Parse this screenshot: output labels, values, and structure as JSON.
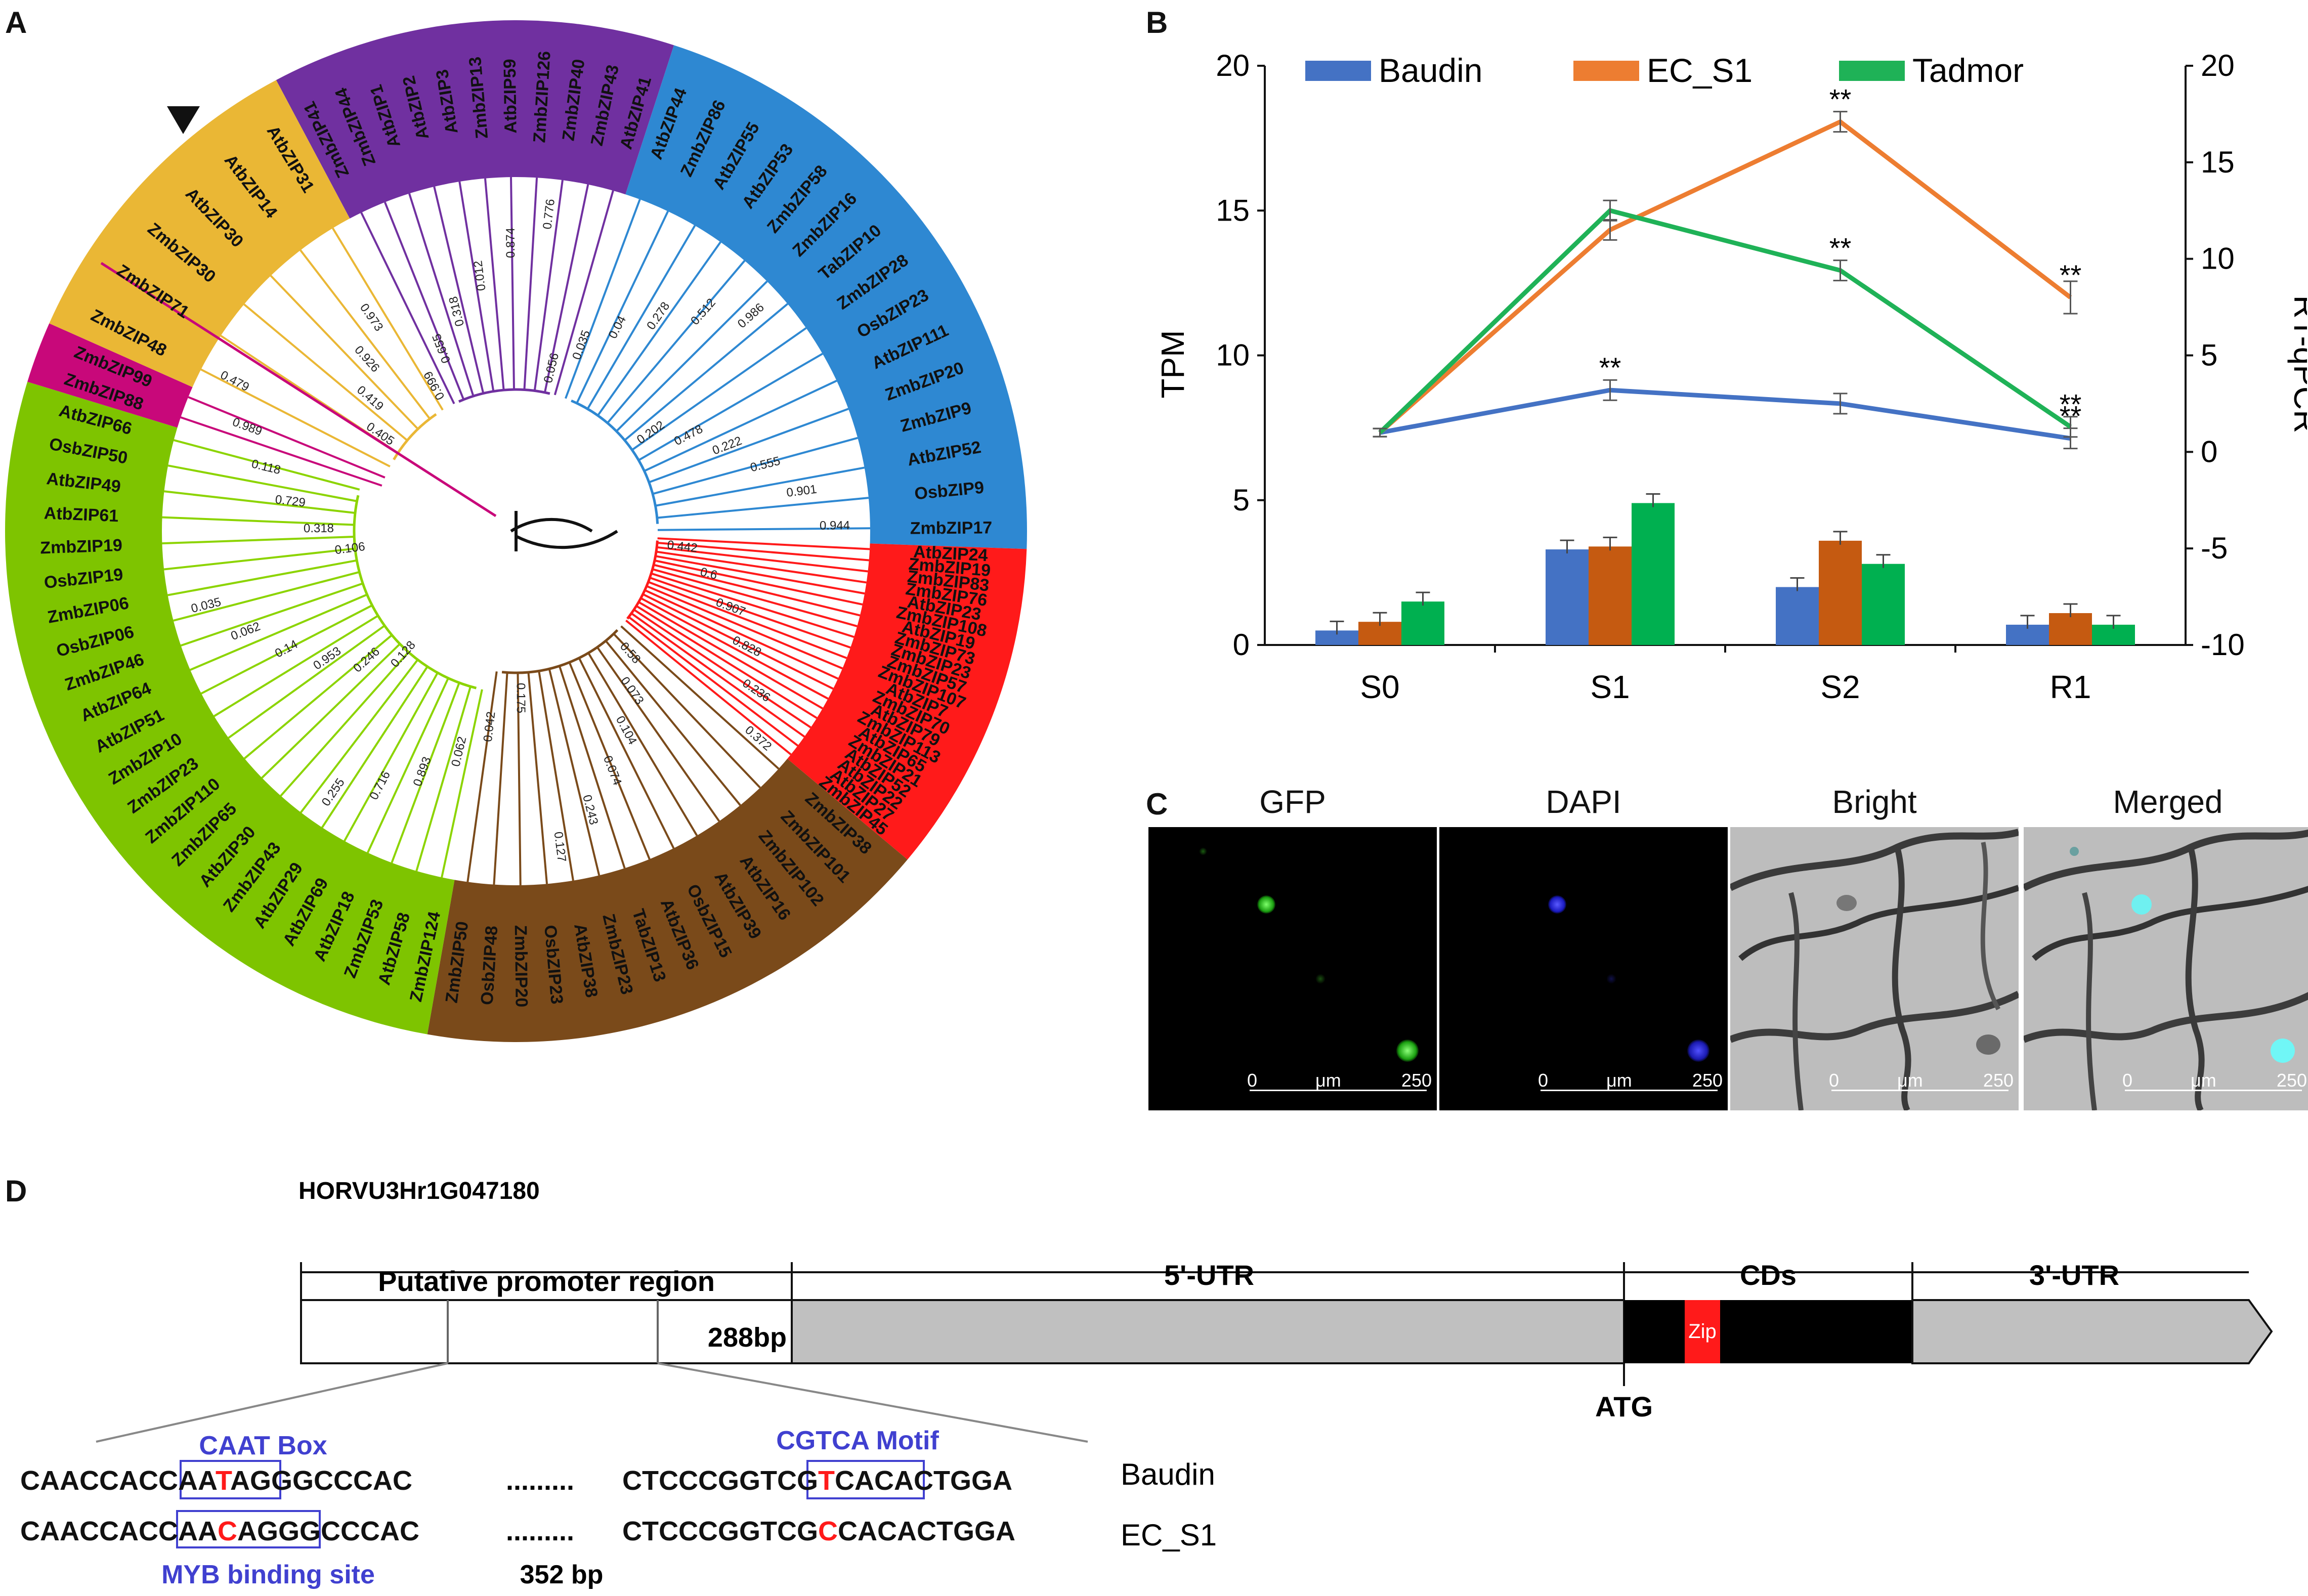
{
  "panels": {
    "a": "A",
    "b": "B",
    "c": "C",
    "d": "D"
  },
  "tree": {
    "clades": [
      {
        "name": "purple",
        "color": "#7030a0"
      },
      {
        "name": "blue",
        "color": "#2e88d2"
      },
      {
        "name": "red",
        "color": "#ff1a1a"
      },
      {
        "name": "brown",
        "color": "#7a4a1a"
      },
      {
        "name": "green",
        "color": "#7ec400"
      },
      {
        "name": "magenta",
        "color": "#c8087a"
      },
      {
        "name": "yellow",
        "color": "#eab735"
      }
    ],
    "leaves_purple": [
      "ZmbZIP41",
      "ZmbZIP44",
      "AtbZIP1",
      "AtbZIP2",
      "AtbZIP3",
      "ZmbZIP13",
      "AtbZIP59",
      "ZmbZIP126",
      "ZmbZIP40",
      "ZmbZIP43",
      "AtbZIP41"
    ],
    "leaves_blue": [
      "AtbZIP44",
      "ZmbZIP86",
      "AtbZIP55",
      "AtbZIP53",
      "ZmbZIP58",
      "ZmbZIP16",
      "TabZIP10",
      "ZmbZIP28",
      "OsbZIP23",
      "AtbZIP111",
      "ZmbZIP20",
      "ZmbZIP9",
      "AtbZIP52",
      "OsbZIP9",
      "ZmbZIP17"
    ],
    "leaves_red": [
      "AtbZIP24",
      "ZmbZIP19",
      "ZmbZIP83",
      "ZmbZIP76",
      "AtbZIP23",
      "ZmbZIP108",
      "AtbZIP19",
      "ZmbZIP73",
      "ZmbZIP23",
      "ZmbZIP57",
      "ZmbZIP107",
      "AtbZIP7",
      "ZmbZIP70",
      "AtbZIP79",
      "ZmbZIP113",
      "AtbZIP65",
      "ZmbZIP21",
      "AtbZIP52",
      "AtbZIP22",
      "AtbZIP27",
      "ZmbZIP45"
    ],
    "leaves_brown": [
      "ZmbZIP38",
      "ZmbZIP101",
      "ZmbZIP102",
      "AtbZIP16",
      "AtbZIP39",
      "OsbZIP15",
      "AtbZIP36",
      "TabZIP13",
      "ZmbZIP23",
      "AtbZIP38",
      "OsbZIP23",
      "ZmbZIP20",
      "OsbZIP48",
      "ZmbZIP50"
    ],
    "leaves_green": [
      "ZmbZIP124",
      "AtbZIP58",
      "ZmbZIP53",
      "AtbZIP18",
      "AtbZIP69",
      "AtbZIP29",
      "ZmbZIP43",
      "AtbZIP30",
      "ZmbZIP65",
      "ZmbZIP110",
      "ZmbZIP23",
      "ZmbZIP10",
      "AtbZIP51",
      "AtbZIP64",
      "ZmbZIP46",
      "OsbZIP06",
      "ZmbZIP06",
      "OsbZIP19",
      "ZmbZIP19",
      "AtbZIP61",
      "AtbZIP49",
      "OsbZIP50",
      "AtbZIP66"
    ],
    "leaves_magenta": [
      "ZmbZIP88",
      "ZmbZIP99"
    ],
    "leaves_yellow": [
      "ZmbZIP48",
      "ZmbZIP71",
      "ZmbZIP30",
      "AtbZIP30",
      "AtbZIP14",
      "AtbZIP31"
    ],
    "bootstrap": [
      "0.999",
      "0.655",
      "0.318",
      "0.012",
      "0.874",
      "0.776",
      "0.056",
      "0.035",
      "0.04",
      "0.278",
      "0.512",
      "0.986",
      "0.202",
      "0.478",
      "0.222",
      "0.555",
      "0.901",
      "0.944",
      "0.442",
      "0.6",
      "0.907",
      "0.828",
      "0.236",
      "0.372",
      "0.58",
      "0.073",
      "0.104",
      "0.074",
      "0.243",
      "0.127",
      "0.175",
      "0.042",
      "0.062",
      "0.893",
      "0.716",
      "0.255",
      "0.128",
      "0.246",
      "0.953",
      "0.14",
      "0.062",
      "0.035",
      "0.106",
      "0.318",
      "0.729",
      "0.118",
      "0.989",
      "0.479",
      "0.405",
      "0.419",
      "0.926",
      "0.973"
    ]
  },
  "chart_data": {
    "type": "bar+line",
    "categories": [
      "S0",
      "S1",
      "S2",
      "R1"
    ],
    "bar_axis": {
      "label": "TPM",
      "ylim": [
        0,
        20
      ],
      "ticks": [
        "0",
        "5",
        "10",
        "15",
        "20"
      ]
    },
    "line_axis": {
      "label": "RT-qPCR",
      "ylim": [
        -10,
        20
      ],
      "ticks": [
        "-10",
        "-5",
        "0",
        "5",
        "10",
        "15",
        "20"
      ]
    },
    "legend": [
      "Baudin",
      "EC_S1",
      "Tadmor"
    ],
    "colors": {
      "Baudin": "#4472c4",
      "EC_S1": "#ed7d31",
      "Tadmor": "#1fb257"
    },
    "bar_colors": {
      "Baudin": "#4472c4",
      "EC_S1": "#c55a11",
      "Tadmor": "#00b050"
    },
    "bars": [
      {
        "name": "Baudin",
        "values": [
          0.5,
          3.3,
          2.0,
          0.7
        ]
      },
      {
        "name": "EC_S1",
        "values": [
          0.8,
          3.4,
          3.6,
          1.1
        ]
      },
      {
        "name": "Tadmor",
        "values": [
          1.5,
          4.9,
          2.8,
          0.7
        ]
      }
    ],
    "lines": [
      {
        "name": "Baudin",
        "values": [
          1.0,
          3.2,
          2.5,
          0.7
        ]
      },
      {
        "name": "EC_S1",
        "values": [
          1.0,
          11.5,
          17.1,
          8.0
        ]
      },
      {
        "name": "Tadmor",
        "values": [
          1.0,
          12.5,
          9.4,
          1.3
        ]
      }
    ],
    "significance": "**"
  },
  "microscopy": {
    "titles": [
      "GFP",
      "DAPI",
      "Bright",
      "Merged"
    ],
    "scale": {
      "start": "0",
      "unit": "μm",
      "end": "250"
    }
  },
  "gene": {
    "id": "HORVU3Hr1G047180",
    "promoter_label": "Putative promoter region",
    "bp288": "288bp",
    "utr5": "5'-UTR",
    "cds": "CDs",
    "utr3": "3'-UTR",
    "zip": "Zip",
    "atg": "ATG",
    "caat_box": "CAAT Box",
    "cgtca_motif": "CGTCA Motif",
    "myb_site": "MYB binding site",
    "bp352": "352 bp",
    "dots": ".........",
    "seq1": {
      "label": "Baudin",
      "a_pre": "CAACCAC",
      "a_box1": "CAA",
      "a_var": "T",
      "a_box2": "",
      "a_post": "AGGGCCCAC",
      "b_pre": "CTCCCGGT",
      "b_box1": "CG",
      "b_var": "T",
      "b_box2": "CA",
      "b_post": "CACTGGA"
    },
    "seq2": {
      "label": "EC_S1",
      "a_pre": "CAACCAC",
      "a_box1": "CAA",
      "a_var": "C",
      "a_box2": "AG",
      "a_post": "GGCCCAC",
      "b_pre": "CTCCCGGTCG",
      "b_var": "C",
      "b_post": "CACACTGGA"
    }
  }
}
